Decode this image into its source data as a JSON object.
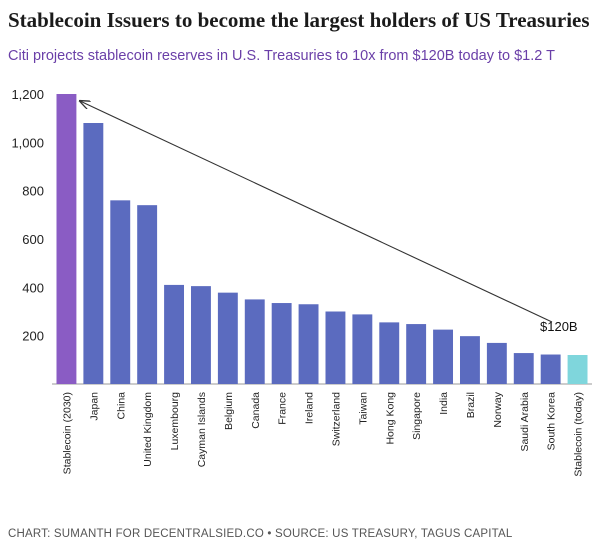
{
  "chart_data": {
    "type": "bar",
    "title": "Stablecoin Issuers to become the largest holders of US Treasuries",
    "subtitle": "Citi projects stablecoin reserves in U.S. Treasuries to 10x from $120B today to $1.2 T",
    "categories": [
      "Stablecoin (2030)",
      "Japan",
      "China",
      "United Kingdom",
      "Luxembourg",
      "Cayman Islands",
      "Belgium",
      "Canada",
      "France",
      "Ireland",
      "Switzerland",
      "Taiwan",
      "Hong Kong",
      "Singapore",
      "India",
      "Brazil",
      "Norway",
      "Saudi Arabia",
      "South Korea",
      "Stablecoin (today)"
    ],
    "values": [
      1200,
      1080,
      760,
      740,
      410,
      405,
      378,
      350,
      335,
      330,
      300,
      288,
      255,
      248,
      225,
      198,
      170,
      128,
      122,
      120
    ],
    "colors": [
      "#8a5cc4",
      "#5b6bbf",
      "#5b6bbf",
      "#5b6bbf",
      "#5b6bbf",
      "#5b6bbf",
      "#5b6bbf",
      "#5b6bbf",
      "#5b6bbf",
      "#5b6bbf",
      "#5b6bbf",
      "#5b6bbf",
      "#5b6bbf",
      "#5b6bbf",
      "#5b6bbf",
      "#5b6bbf",
      "#5b6bbf",
      "#5b6bbf",
      "#5b6bbf",
      "#7fd6dc"
    ],
    "ylim": [
      0,
      1200
    ],
    "yticks": [
      200,
      400,
      600,
      800,
      {
        "value": 1000,
        "label": "1,000"
      },
      {
        "value": 1200,
        "label": "1,200"
      }
    ],
    "annotation": "$120B",
    "footer": "CHART: SUMANTH FOR DECENTRALSIED.CO • SOURCE: US TREASURY, TAGUS CAPITAL"
  }
}
